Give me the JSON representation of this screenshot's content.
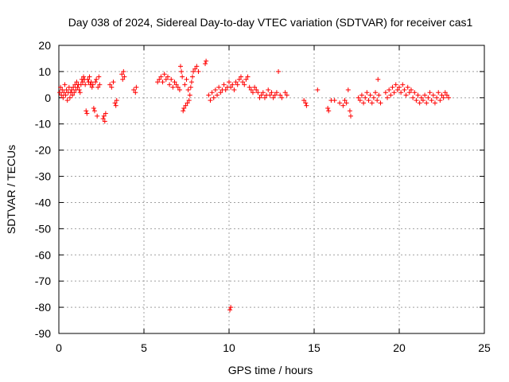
{
  "chart_data": {
    "type": "scatter",
    "title": "Day 038 of 2024, Sidereal Day-to-day VTEC variation (SDTVAR) for receiver cas1",
    "xlabel": "GPS time / hours",
    "ylabel": "SDTVAR / TECUs",
    "xlim": [
      0,
      25
    ],
    "ylim": [
      -90,
      20
    ],
    "xticks": [
      0,
      5,
      10,
      15,
      20,
      25
    ],
    "xtick_labels": [
      "0",
      "5",
      "10",
      "15",
      "20",
      "25"
    ],
    "yticks": [
      20,
      10,
      0,
      -10,
      -20,
      -30,
      -40,
      -50,
      -60,
      -70,
      -80,
      -90
    ],
    "ytick_labels": [
      "20",
      "10",
      "0",
      "-10",
      "-20",
      "-30",
      "-40",
      "-50",
      "-60",
      "-70",
      "-80",
      "-90"
    ],
    "grid": true,
    "marker": "+",
    "colors": {
      "series": "#ff0000",
      "axis": "#000000",
      "grid": "#a0a0a0"
    },
    "series": [
      {
        "name": "SDTVAR",
        "points": [
          [
            0.05,
            2
          ],
          [
            0.1,
            4
          ],
          [
            0.15,
            1
          ],
          [
            0.2,
            3
          ],
          [
            0.25,
            0
          ],
          [
            0.3,
            2
          ],
          [
            0.35,
            5
          ],
          [
            0.4,
            1
          ],
          [
            0.45,
            3
          ],
          [
            0.5,
            -1
          ],
          [
            0.55,
            2
          ],
          [
            0.6,
            4
          ],
          [
            0.65,
            0
          ],
          [
            0.7,
            2
          ],
          [
            0.75,
            3
          ],
          [
            0.8,
            1
          ],
          [
            0.85,
            4
          ],
          [
            0.9,
            2
          ],
          [
            0.95,
            5
          ],
          [
            1.0,
            3
          ],
          [
            1.05,
            6
          ],
          [
            1.1,
            4
          ],
          [
            1.15,
            5
          ],
          [
            1.2,
            3
          ],
          [
            1.25,
            2
          ],
          [
            1.3,
            5
          ],
          [
            1.35,
            7
          ],
          [
            1.4,
            6
          ],
          [
            1.45,
            8
          ],
          [
            1.5,
            7
          ],
          [
            1.55,
            5
          ],
          [
            1.6,
            -5
          ],
          [
            1.65,
            -6
          ],
          [
            1.7,
            7
          ],
          [
            1.75,
            6
          ],
          [
            1.8,
            8
          ],
          [
            1.85,
            5
          ],
          [
            1.9,
            6
          ],
          [
            1.95,
            4
          ],
          [
            2.0,
            5
          ],
          [
            2.05,
            -4
          ],
          [
            2.1,
            -5
          ],
          [
            2.15,
            6
          ],
          [
            2.2,
            7
          ],
          [
            2.25,
            -7
          ],
          [
            2.3,
            4
          ],
          [
            2.35,
            8
          ],
          [
            2.4,
            5
          ],
          [
            2.6,
            -8
          ],
          [
            2.65,
            -7
          ],
          [
            2.7,
            -9
          ],
          [
            2.75,
            -6
          ],
          [
            3.0,
            5
          ],
          [
            3.1,
            4
          ],
          [
            3.2,
            6
          ],
          [
            3.3,
            -2
          ],
          [
            3.35,
            -3
          ],
          [
            3.4,
            -1
          ],
          [
            3.7,
            9
          ],
          [
            3.75,
            7
          ],
          [
            3.8,
            10
          ],
          [
            3.85,
            8
          ],
          [
            4.4,
            3
          ],
          [
            4.5,
            2
          ],
          [
            4.55,
            4
          ],
          [
            5.8,
            6
          ],
          [
            5.9,
            7
          ],
          [
            6.0,
            8
          ],
          [
            6.1,
            6
          ],
          [
            6.2,
            9
          ],
          [
            6.3,
            7
          ],
          [
            6.4,
            8
          ],
          [
            6.5,
            5
          ],
          [
            6.6,
            7
          ],
          [
            6.7,
            4
          ],
          [
            6.8,
            6
          ],
          [
            6.9,
            5
          ],
          [
            7.0,
            4
          ],
          [
            7.1,
            3
          ],
          [
            7.15,
            12
          ],
          [
            7.2,
            10
          ],
          [
            7.25,
            8
          ],
          [
            7.3,
            -5
          ],
          [
            7.35,
            -4
          ],
          [
            7.4,
            5
          ],
          [
            7.45,
            -3
          ],
          [
            7.5,
            7
          ],
          [
            7.55,
            -2
          ],
          [
            7.6,
            3
          ],
          [
            7.65,
            -1
          ],
          [
            7.7,
            1
          ],
          [
            7.75,
            4
          ],
          [
            7.8,
            6
          ],
          [
            7.85,
            8
          ],
          [
            7.9,
            10
          ],
          [
            8.0,
            11
          ],
          [
            8.1,
            12
          ],
          [
            8.2,
            10
          ],
          [
            8.6,
            13
          ],
          [
            8.65,
            14
          ],
          [
            8.8,
            1
          ],
          [
            8.9,
            -1
          ],
          [
            9.0,
            2
          ],
          [
            9.1,
            0
          ],
          [
            9.2,
            3
          ],
          [
            9.3,
            1
          ],
          [
            9.4,
            4
          ],
          [
            9.5,
            2
          ],
          [
            9.6,
            3
          ],
          [
            9.7,
            5
          ],
          [
            9.8,
            3
          ],
          [
            9.9,
            4
          ],
          [
            10.0,
            6
          ],
          [
            10.1,
            4
          ],
          [
            10.2,
            5
          ],
          [
            10.3,
            3
          ],
          [
            10.4,
            6
          ],
          [
            10.5,
            5
          ],
          [
            10.6,
            7
          ],
          [
            10.7,
            8
          ],
          [
            10.8,
            6
          ],
          [
            10.9,
            5
          ],
          [
            11.0,
            7
          ],
          [
            11.1,
            8
          ],
          [
            11.2,
            4
          ],
          [
            11.3,
            3
          ],
          [
            11.4,
            2
          ],
          [
            11.5,
            4
          ],
          [
            11.6,
            3
          ],
          [
            11.7,
            2
          ],
          [
            11.8,
            0
          ],
          [
            11.9,
            1
          ],
          [
            12.0,
            2
          ],
          [
            12.1,
            0
          ],
          [
            12.2,
            1
          ],
          [
            12.3,
            3
          ],
          [
            12.4,
            1
          ],
          [
            12.5,
            2
          ],
          [
            12.6,
            0
          ],
          [
            12.7,
            1
          ],
          [
            12.8,
            2
          ],
          [
            12.9,
            10
          ],
          [
            13.0,
            1
          ],
          [
            13.1,
            0
          ],
          [
            13.3,
            2
          ],
          [
            13.4,
            1
          ],
          [
            10.1,
            -80
          ],
          [
            10.05,
            -81
          ],
          [
            14.4,
            -1
          ],
          [
            14.5,
            -2
          ],
          [
            14.55,
            -3
          ],
          [
            15.2,
            3
          ],
          [
            15.8,
            -4
          ],
          [
            15.85,
            -5
          ],
          [
            16.0,
            -1
          ],
          [
            16.2,
            -1
          ],
          [
            16.5,
            -2
          ],
          [
            16.7,
            -3
          ],
          [
            16.8,
            -1
          ],
          [
            16.9,
            -2
          ],
          [
            17.0,
            3
          ],
          [
            17.1,
            -5
          ],
          [
            17.15,
            -7
          ],
          [
            17.6,
            0
          ],
          [
            17.7,
            -1
          ],
          [
            17.8,
            1
          ],
          [
            17.9,
            -2
          ],
          [
            18.0,
            0
          ],
          [
            18.1,
            2
          ],
          [
            18.2,
            -1
          ],
          [
            18.3,
            1
          ],
          [
            18.4,
            -2
          ],
          [
            18.5,
            0
          ],
          [
            18.6,
            2
          ],
          [
            18.7,
            -1
          ],
          [
            18.75,
            7
          ],
          [
            18.8,
            1
          ],
          [
            18.9,
            -2
          ],
          [
            19.2,
            2
          ],
          [
            19.3,
            0
          ],
          [
            19.4,
            3
          ],
          [
            19.5,
            1
          ],
          [
            19.6,
            4
          ],
          [
            19.7,
            2
          ],
          [
            19.8,
            5
          ],
          [
            19.9,
            3
          ],
          [
            20.0,
            4
          ],
          [
            20.1,
            2
          ],
          [
            20.2,
            5
          ],
          [
            20.3,
            3
          ],
          [
            20.4,
            1
          ],
          [
            20.5,
            4
          ],
          [
            20.6,
            2
          ],
          [
            20.7,
            3
          ],
          [
            20.8,
            0
          ],
          [
            20.9,
            2
          ],
          [
            21.0,
            -1
          ],
          [
            21.1,
            1
          ],
          [
            21.2,
            -2
          ],
          [
            21.3,
            0
          ],
          [
            21.4,
            -1
          ],
          [
            21.5,
            1
          ],
          [
            21.6,
            -2
          ],
          [
            21.7,
            0
          ],
          [
            21.8,
            2
          ],
          [
            21.9,
            -1
          ],
          [
            22.0,
            1
          ],
          [
            22.1,
            -2
          ],
          [
            22.2,
            0
          ],
          [
            22.3,
            2
          ],
          [
            22.4,
            -1
          ],
          [
            22.5,
            1
          ],
          [
            22.6,
            0
          ],
          [
            22.7,
            2
          ],
          [
            22.8,
            1
          ],
          [
            22.9,
            0
          ]
        ]
      }
    ]
  }
}
